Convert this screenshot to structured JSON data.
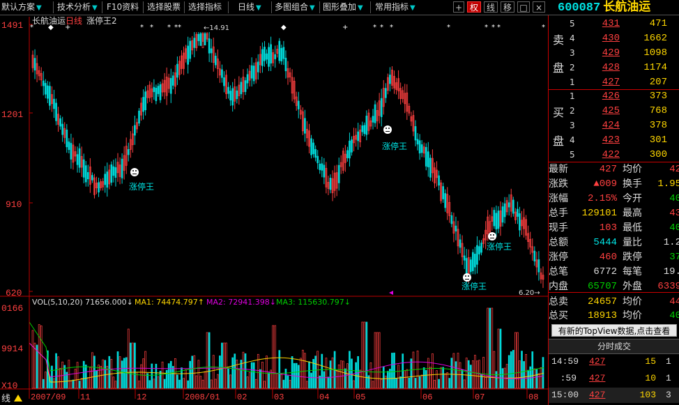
{
  "toolbar": {
    "items": [
      {
        "label": "默认方案",
        "dropdown": true
      },
      {
        "label": "技术分析",
        "dropdown": true
      },
      {
        "label": "F10资料",
        "dropdown": false
      },
      {
        "label": "选择股票",
        "dropdown": false
      },
      {
        "label": "选择指标",
        "dropdown": false
      },
      {
        "label": "日线",
        "dropdown": true
      },
      {
        "label": "多图组合",
        "dropdown": true
      },
      {
        "label": "图形叠加",
        "dropdown": true
      },
      {
        "label": "常用指标",
        "dropdown": true
      }
    ],
    "buttons": {
      "plus": "+",
      "quan": "权",
      "xian": "线",
      "yi": "移",
      "square": "□",
      "close": "×"
    }
  },
  "stock": {
    "code": "600087",
    "name": "长航油运"
  },
  "chart_header": {
    "name": "长航油运",
    "period": "日线",
    "indicator": "涨停王2"
  },
  "price_axis": {
    "labels": [
      "1491",
      "1201",
      "910",
      "620"
    ]
  },
  "price_markers": {
    "high": "14.91",
    "low": "6.20"
  },
  "limit_labels": [
    "涨停王",
    "涨停王",
    "涨停王",
    "涨停王"
  ],
  "volume_header": {
    "vol": "VOL(5,10,20)  71656.000↓",
    "ma1": "MA1: 74474.797↑",
    "ma2": "MA2: 72941.398↓",
    "ma3": "MA3: 115630.797↓"
  },
  "volume_axis": {
    "labels": [
      "0166",
      "9914",
      "X10"
    ]
  },
  "date_axis": {
    "labels": [
      "2007/09",
      "11",
      "12",
      "2008/01",
      "02",
      "03",
      "04",
      "05",
      "06",
      "07",
      "08"
    ]
  },
  "bottom_corner": "线",
  "orderbook": {
    "sell_label": [
      "卖",
      "盘"
    ],
    "buy_label": [
      "买",
      "盘"
    ],
    "asks": [
      {
        "level": "5",
        "price": "431",
        "vol": "471"
      },
      {
        "level": "4",
        "price": "430",
        "vol": "1662"
      },
      {
        "level": "3",
        "price": "429",
        "vol": "1098"
      },
      {
        "level": "2",
        "price": "428",
        "vol": "1174"
      },
      {
        "level": "1",
        "price": "427",
        "vol": "207"
      }
    ],
    "bids": [
      {
        "level": "1",
        "price": "426",
        "vol": "373"
      },
      {
        "level": "2",
        "price": "425",
        "vol": "768"
      },
      {
        "level": "3",
        "price": "424",
        "vol": "378"
      },
      {
        "level": "4",
        "price": "423",
        "vol": "301"
      },
      {
        "level": "5",
        "price": "422",
        "vol": "300"
      }
    ]
  },
  "quotes": [
    {
      "l": "最新",
      "lv": "427",
      "lc": "red",
      "r": "均价",
      "rv": "42",
      "rc": "red"
    },
    {
      "l": "涨跌",
      "lv": "▲009",
      "lc": "red",
      "r": "换手",
      "rv": "1.95",
      "rc": "yellow"
    },
    {
      "l": "涨幅",
      "lv": "2.15%",
      "lc": "red",
      "r": "今开",
      "rv": "40",
      "rc": "green"
    },
    {
      "l": "总手",
      "lv": "129101",
      "lc": "yellow",
      "r": "最高",
      "rv": "43",
      "rc": "red"
    },
    {
      "l": "现手",
      "lv": "103",
      "lc": "red",
      "r": "最低",
      "rv": "40",
      "rc": "green"
    },
    {
      "l": "总额",
      "lv": "5444",
      "lc": "cyan",
      "r": "量比",
      "rv": "1.2",
      "rc": "white"
    },
    {
      "l": "涨停",
      "lv": "460",
      "lc": "red",
      "r": "跌停",
      "rv": "37",
      "rc": "green"
    },
    {
      "l": "总笔",
      "lv": "6772",
      "lc": "white",
      "r": "每笔",
      "rv": "19.",
      "rc": "white"
    },
    {
      "l": "内盘",
      "lv": "65707",
      "lc": "green",
      "r": "外盘",
      "rv": "6339",
      "rc": "red"
    },
    {
      "l": "总卖",
      "lv": "24657",
      "lc": "yellow",
      "r": "均价",
      "rv": "44",
      "rc": "red"
    },
    {
      "l": "总买",
      "lv": "18913",
      "lc": "yellow",
      "r": "均价",
      "rv": "40",
      "rc": "green"
    }
  ],
  "notice": "有新的TopView数据,点击查看",
  "ticks": {
    "title": "分时成交",
    "rows": [
      {
        "t": "14:59",
        "p": "427",
        "v": "15",
        "x": "1"
      },
      {
        "t": ":59",
        "p": "427",
        "v": "10",
        "x": "1"
      },
      {
        "t": "15:00",
        "p": "427",
        "v": "103",
        "x": "3"
      }
    ]
  },
  "colors": {
    "up": "#ff4040",
    "down": "#00d8d8",
    "accent": "#ffd700",
    "axis": "#c00000"
  }
}
